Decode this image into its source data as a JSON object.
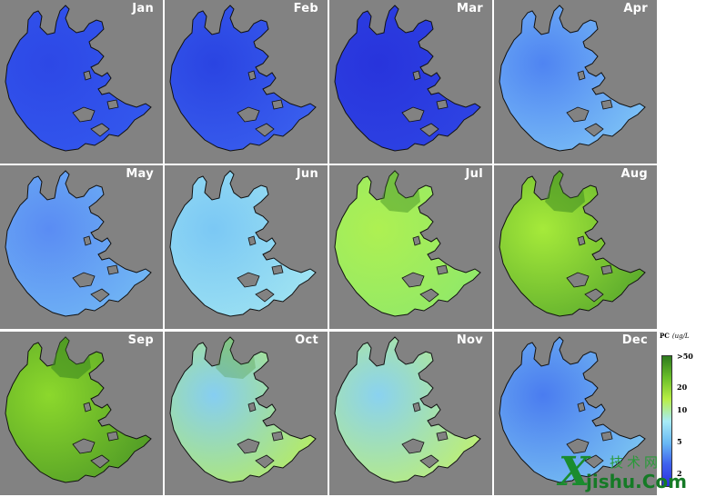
{
  "panels": [
    {
      "month": "Jan",
      "shade": "#2d48e6",
      "shade2": "#3358ee",
      "green": 0.0
    },
    {
      "month": "Feb",
      "shade": "#2a44e2",
      "shade2": "#3a60ef",
      "green": 0.0
    },
    {
      "month": "Mar",
      "shade": "#2834dc",
      "shade2": "#2e44e4",
      "green": 0.0
    },
    {
      "month": "Apr",
      "shade": "#4f84f2",
      "shade2": "#7ec4f6",
      "green": 0.0
    },
    {
      "month": "May",
      "shade": "#5a8cf3",
      "shade2": "#72b8f4",
      "green": 0.15
    },
    {
      "month": "Jun",
      "shade": "#7bc8f4",
      "shade2": "#a0e4f2",
      "green": 0.2
    },
    {
      "month": "Jul",
      "shade": "#aef052",
      "shade2": "#8fe86a",
      "green": 0.75
    },
    {
      "month": "Aug",
      "shade": "#a6ea3a",
      "shade2": "#58a82c",
      "green": 0.9
    },
    {
      "month": "Sep",
      "shade": "#8cd82c",
      "shade2": "#4f9a26",
      "green": 1.0
    },
    {
      "month": "Oct",
      "shade": "#86cef2",
      "shade2": "#b6ec60",
      "green": 0.45
    },
    {
      "month": "Nov",
      "shade": "#8ad2f0",
      "shade2": "#bff070",
      "green": 0.3
    },
    {
      "month": "Dec",
      "shade": "#4a7cf0",
      "shade2": "#7cc6f2",
      "green": 0.0
    }
  ],
  "legend": {
    "title": "PC",
    "unit": "(ug/L",
    "ticks": [
      ">50",
      "20",
      "10",
      "5",
      "2"
    ],
    "colors": [
      "#2e7a1e",
      "#6cc02a",
      "#b8ee44",
      "#a8ecf6",
      "#68b8f4",
      "#3f62ee",
      "#2d2ee0"
    ]
  },
  "watermark": {
    "letter": "X",
    "chinese": "技术网",
    "url": "jishu.Com"
  }
}
